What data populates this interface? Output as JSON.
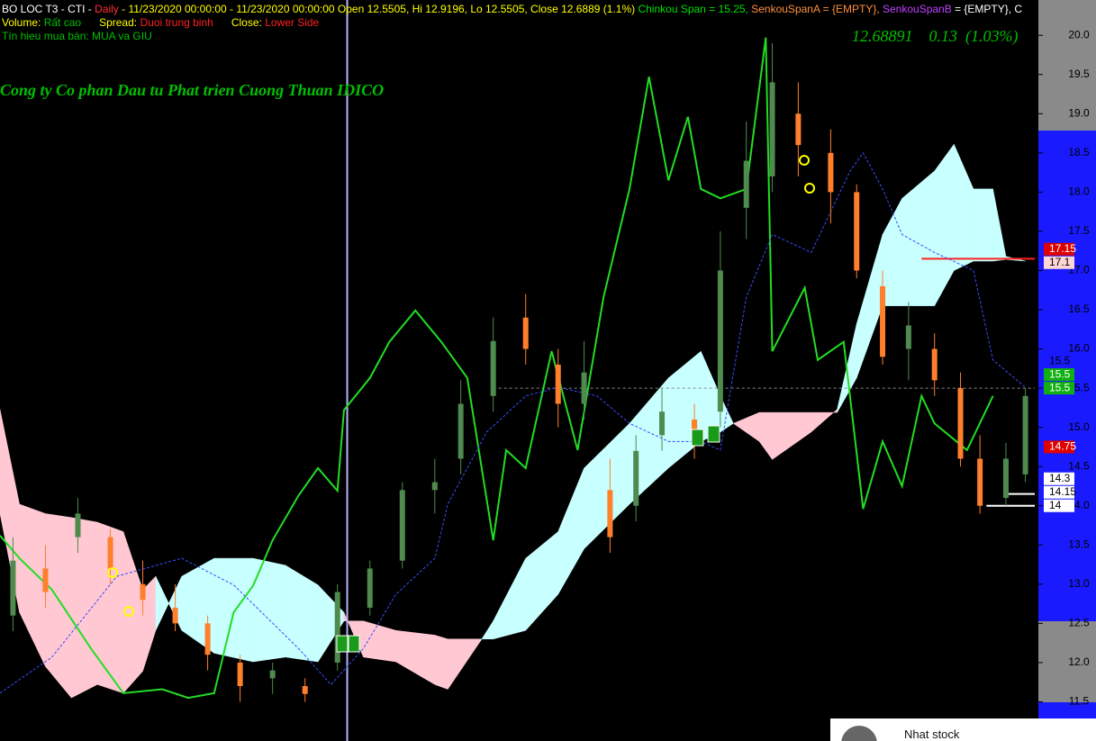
{
  "chart_data": {
    "type": "candlestick",
    "header": [
      [
        {
          "text": "BO LOC T3 - CTI - ",
          "color": "#ffffff"
        },
        {
          "text": "Daily",
          "color": "#ff3030"
        },
        {
          "text": " - 11/23/2020 00:00:00 - 11/23/2020 00:00:00 Open 12.5505, Hi 12.9196, Lo 12.5505, Close 12.6889 (1.1%) ",
          "color": "#ffff00"
        },
        {
          "text": "Chinkou Span = 15.25, ",
          "color": "#00e000"
        },
        {
          "text": "SenkouSpanA = {EMPTY}, ",
          "color": "#ff9040"
        },
        {
          "text": "SenkouSpanB",
          "color": "#c040ff"
        },
        {
          "text": " = {EMPTY}, C",
          "color": "#ffffff"
        }
      ],
      [
        {
          "text": "Volume: ",
          "color": "#ffff00"
        },
        {
          "text": "Rất cao",
          "color": "#00c000"
        },
        {
          "text": "      Spread: ",
          "color": "#ffff00"
        },
        {
          "text": "Duoi trung binh",
          "color": "#ff2020"
        },
        {
          "text": "      Close: ",
          "color": "#ffff00"
        },
        {
          "text": "Lower Side",
          "color": "#ff2020"
        }
      ],
      [
        {
          "text": "Tín hieu mua bán: MUA va GIU",
          "color": "#00c000"
        }
      ]
    ],
    "title": "Cong ty Co phan Dau tu Phat trien Cuong Thuan IDICO",
    "last_info": "12.68891    0.13  (1.03%)",
    "xlim": [
      0,
      160
    ],
    "ylim": [
      11.0,
      20.45
    ],
    "yticks": [
      11.5,
      {
        "value": 12,
        "label": "12.0"
      },
      12.5,
      {
        "value": 13,
        "label": "13.0"
      },
      13.5,
      {
        "value": 14,
        "label": "14.0"
      },
      14.5,
      {
        "value": 15,
        "label": "15.0"
      },
      15.5,
      {
        "value": 16,
        "label": "16.0"
      },
      16.5,
      {
        "value": 17,
        "label": "17.0"
      },
      17.5,
      {
        "value": 18,
        "label": "18.0"
      },
      18.5,
      {
        "value": 19,
        "label": "19.0"
      },
      19.5,
      {
        "value": 20,
        "label": "20.0"
      }
    ],
    "cursor_x": 53.5,
    "cloud": {
      "bull_color": "#c8ffff",
      "bear_color": "#ffc8d2",
      "x": [
        0,
        3,
        7,
        11,
        15,
        19,
        22,
        24,
        28,
        33,
        39,
        44,
        49,
        53,
        56,
        61,
        67,
        69,
        74,
        76,
        81,
        86,
        90,
        97,
        103,
        108,
        111,
        113,
        117,
        119,
        125,
        129,
        132,
        136,
        139,
        144,
        147,
        150,
        153,
        155,
        158
      ],
      "span_a": [
        13.9,
        12.64,
        11.95,
        11.55,
        11.72,
        11.61,
        11.89,
        12.41,
        13.1,
        13.33,
        13.33,
        13.24,
        12.99,
        12.64,
        12.07,
        12.01,
        11.72,
        11.66,
        12.27,
        12.53,
        13.33,
        13.67,
        14.48,
        15.05,
        15.63,
        15.97,
        15.4,
        15.05,
        14.82,
        14.59,
        14.94,
        15.23,
        16.32,
        17.46,
        17.92,
        18.27,
        18.61,
        18.04,
        18.04,
        17.18,
        17.12
      ],
      "span_b": [
        15.23,
        14.02,
        13.9,
        13.85,
        13.79,
        13.67,
        12.93,
        13.1,
        12.41,
        12.12,
        12.01,
        12.07,
        12.01,
        12.53,
        12.53,
        12.41,
        12.35,
        12.3,
        12.3,
        12.3,
        12.41,
        12.87,
        13.45,
        14.02,
        14.48,
        14.82,
        14.94,
        15.05,
        15.19,
        15.19,
        15.19,
        15.19,
        15.63,
        16.55,
        16.55,
        16.55,
        17.0,
        17.12,
        17.12,
        17.14,
        17.12
      ]
    },
    "series": [
      {
        "color": "#22dd22",
        "width": 2,
        "dashed": false,
        "x": [
          0,
          3,
          8,
          14,
          19,
          25,
          29,
          33,
          36,
          39,
          42,
          46,
          49,
          52,
          53,
          57,
          60,
          64,
          68,
          72,
          76,
          78,
          81,
          85,
          89,
          93,
          97,
          100,
          103,
          106,
          108,
          111,
          115,
          118,
          119,
          124,
          126,
          130,
          133,
          136,
          139,
          142,
          144,
          149,
          153
        ],
        "values": [
          13.62,
          13.33,
          12.93,
          12.18,
          11.61,
          11.66,
          11.55,
          11.61,
          12.64,
          12.98,
          13.56,
          14.13,
          14.48,
          14.19,
          15.22,
          15.63,
          16.09,
          16.49,
          16.09,
          15.63,
          13.56,
          14.71,
          14.48,
          15.97,
          14.71,
          16.66,
          18.04,
          19.47,
          18.15,
          18.96,
          18.04,
          17.92,
          18.04,
          19.97,
          15.97,
          16.78,
          15.86,
          16.09,
          13.96,
          14.82,
          14.25,
          15.4,
          15.05,
          14.71,
          15.4
        ]
      },
      {
        "color": "#3a4cff",
        "width": 1,
        "dashed": true,
        "x": [
          0,
          8,
          18,
          28,
          36,
          46,
          51,
          56,
          61,
          67,
          69,
          75,
          81,
          86,
          92,
          97,
          103,
          108,
          111,
          115,
          119,
          125,
          131,
          133,
          136,
          139,
          144,
          150,
          153,
          158
        ],
        "values": [
          11.61,
          12.07,
          13.1,
          13.33,
          12.99,
          12.18,
          11.72,
          12.18,
          12.87,
          13.33,
          14.02,
          14.94,
          15.4,
          15.51,
          15.4,
          15.05,
          14.82,
          14.82,
          14.71,
          16.66,
          17.46,
          17.23,
          18.27,
          18.5,
          18.04,
          17.46,
          17.23,
          17.0,
          15.86,
          15.51
        ]
      }
    ],
    "candles": {
      "up_color": "#4f8a4f",
      "down_color": "#ff7f2a",
      "x": [
        2,
        7,
        12,
        17,
        22,
        27,
        32,
        37,
        42,
        47,
        52,
        57,
        62,
        67,
        71,
        76,
        81,
        86,
        90,
        94,
        98,
        102,
        107,
        111,
        115,
        119,
        123,
        128,
        132,
        136,
        140,
        144,
        148,
        151,
        155,
        158
      ],
      "open": [
        12.6,
        13.2,
        13.6,
        13.6,
        13.0,
        12.7,
        12.5,
        12.0,
        11.8,
        11.7,
        12.0,
        12.7,
        13.3,
        14.2,
        14.6,
        15.4,
        16.4,
        15.8,
        15.3,
        14.2,
        14.0,
        14.9,
        15.1,
        15.2,
        17.8,
        18.2,
        19.0,
        18.5,
        18.0,
        16.8,
        16.0,
        16.0,
        15.5,
        14.6,
        14.1,
        14.4
      ],
      "close": [
        13.3,
        12.9,
        13.9,
        13.2,
        12.8,
        12.5,
        12.1,
        11.7,
        11.9,
        11.6,
        12.9,
        13.2,
        14.2,
        14.3,
        15.3,
        16.1,
        16.0,
        15.3,
        15.7,
        13.6,
        14.7,
        15.2,
        14.8,
        17.0,
        18.4,
        19.4,
        18.6,
        18.0,
        17.0,
        15.9,
        16.3,
        15.6,
        14.6,
        14.0,
        14.6,
        15.4
      ],
      "high": [
        13.6,
        13.5,
        14.1,
        13.7,
        13.3,
        13.0,
        12.6,
        12.1,
        12.0,
        11.8,
        13.0,
        13.3,
        14.3,
        14.6,
        15.6,
        16.4,
        16.7,
        16.0,
        16.1,
        14.6,
        14.9,
        15.5,
        15.3,
        17.5,
        18.9,
        19.9,
        19.4,
        18.8,
        18.1,
        17.0,
        16.6,
        16.2,
        15.7,
        14.9,
        14.8,
        15.5
      ],
      "low": [
        12.4,
        12.7,
        13.4,
        13.0,
        12.6,
        12.4,
        11.9,
        11.5,
        11.6,
        11.5,
        11.9,
        12.6,
        13.2,
        13.9,
        14.4,
        15.2,
        15.8,
        15.0,
        15.1,
        13.4,
        13.8,
        14.7,
        14.6,
        15.0,
        17.4,
        18.0,
        18.2,
        17.6,
        16.9,
        15.8,
        15.6,
        15.4,
        14.5,
        13.9,
        14.0,
        14.3
      ]
    },
    "levels": [
      {
        "value": 17.15,
        "color": "#ff2020",
        "x_start": 142,
        "dashed": false
      },
      {
        "value": 15.5,
        "color": "#8a8a8a",
        "x_start": 76,
        "dashed": true
      },
      {
        "value": 14.15,
        "color": "#ffffff",
        "x_start": 155,
        "dashed": false
      },
      {
        "value": 14.0,
        "color": "#ffffff",
        "x_start": 152,
        "dashed": false
      }
    ],
    "markers": [
      {
        "value": 17.15,
        "bg": "#e00000",
        "fg": "#ffffff"
      },
      {
        "value": 17.1,
        "bg": "#ffd6d6",
        "fg": "#000000"
      },
      {
        "value": 15.5,
        "bg": "none",
        "fg": "#000000"
      },
      {
        "value": 15.5,
        "bg": "#10b010",
        "fg": "#ffffff"
      },
      {
        "value": 15.5,
        "bg": "#10b010",
        "fg": "#ffffff"
      },
      {
        "value": 14.75,
        "bg": "#e00000",
        "fg": "#ffffff"
      },
      {
        "value": 14.3,
        "bg": "#ffffff",
        "fg": "#000000"
      },
      {
        "value": 14.15,
        "bg": "#ffffff",
        "fg": "#000000"
      },
      {
        "value": 14,
        "bg": "#ffffff",
        "fg": "#000000"
      }
    ]
  },
  "overlay_card": {
    "name": "Nhat stock"
  }
}
